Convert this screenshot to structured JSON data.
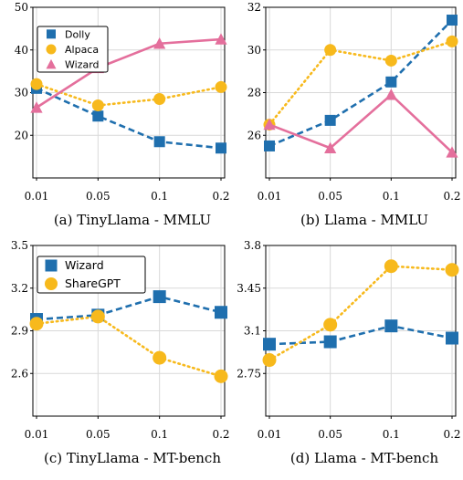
{
  "colors": {
    "dolly": "#1f6fae",
    "alpaca": "#f7b91c",
    "wizard_pink": "#e46f9c",
    "grid": "#d9d9d9"
  },
  "chart_data": [
    {
      "type": "line",
      "caption": "(a) TinyLlama - MMLU",
      "categories": [
        "0.01",
        "0.05",
        "0.1",
        "0.2"
      ],
      "yticks": [
        "20",
        "30",
        "40",
        "50"
      ],
      "ylim": [
        10,
        50
      ],
      "grid": true,
      "legend": "top-left",
      "series": [
        {
          "name": "Dolly",
          "values": [
            31.0,
            24.5,
            18.5,
            17.0
          ],
          "color": "#1f6fae",
          "marker": "square",
          "dash": "dashed"
        },
        {
          "name": "Alpaca",
          "values": [
            32.0,
            27.0,
            28.5,
            31.3
          ],
          "color": "#f7b91c",
          "marker": "circle",
          "dash": "dotted"
        },
        {
          "name": "Wizard",
          "values": [
            26.5,
            35.8,
            41.5,
            42.5
          ],
          "color": "#e46f9c",
          "marker": "triangle",
          "dash": "solid"
        }
      ]
    },
    {
      "type": "line",
      "caption": "(b) Llama - MMLU",
      "categories": [
        "0.01",
        "0.05",
        "0.1",
        "0.2"
      ],
      "yticks": [
        "26",
        "28",
        "30",
        "32"
      ],
      "ylim": [
        24,
        32
      ],
      "grid": true,
      "legend": "none",
      "series": [
        {
          "name": "Dolly",
          "values": [
            25.5,
            26.7,
            28.5,
            31.4
          ],
          "color": "#1f6fae",
          "marker": "square",
          "dash": "dashed"
        },
        {
          "name": "Alpaca",
          "values": [
            26.5,
            30.0,
            29.5,
            30.4
          ],
          "color": "#f7b91c",
          "marker": "circle",
          "dash": "dotted"
        },
        {
          "name": "Wizard",
          "values": [
            26.5,
            25.4,
            27.9,
            25.2
          ],
          "color": "#e46f9c",
          "marker": "triangle",
          "dash": "solid"
        }
      ]
    },
    {
      "type": "line",
      "caption": "(c) TinyLlama - MT-bench",
      "categories": [
        "0.01",
        "0.05",
        "0.1",
        "0.2"
      ],
      "yticks": [
        "2.6",
        "2.9",
        "3.2",
        "3.5"
      ],
      "ylim": [
        2.3,
        3.5
      ],
      "grid": true,
      "legend": "top-left",
      "series": [
        {
          "name": "Wizard",
          "values": [
            2.98,
            3.01,
            3.14,
            3.03
          ],
          "color": "#1f6fae",
          "marker": "square",
          "dash": "dashed"
        },
        {
          "name": "ShareGPT",
          "values": [
            2.95,
            3.0,
            2.71,
            2.58
          ],
          "color": "#f7b91c",
          "marker": "circle",
          "dash": "dotted"
        }
      ]
    },
    {
      "type": "line",
      "caption": "(d) Llama - MT-bench",
      "categories": [
        "0.01",
        "0.05",
        "0.1",
        "0.2"
      ],
      "yticks": [
        "2.75",
        "3.1",
        "3.45",
        "3.8"
      ],
      "ylim": [
        2.4,
        3.8
      ],
      "grid": true,
      "legend": "none",
      "series": [
        {
          "name": "Wizard",
          "values": [
            2.99,
            3.01,
            3.14,
            3.04
          ],
          "color": "#1f6fae",
          "marker": "square",
          "dash": "dashed"
        },
        {
          "name": "ShareGPT",
          "values": [
            2.86,
            3.15,
            3.63,
            3.6
          ],
          "color": "#f7b91c",
          "marker": "circle",
          "dash": "dotted"
        }
      ]
    }
  ]
}
